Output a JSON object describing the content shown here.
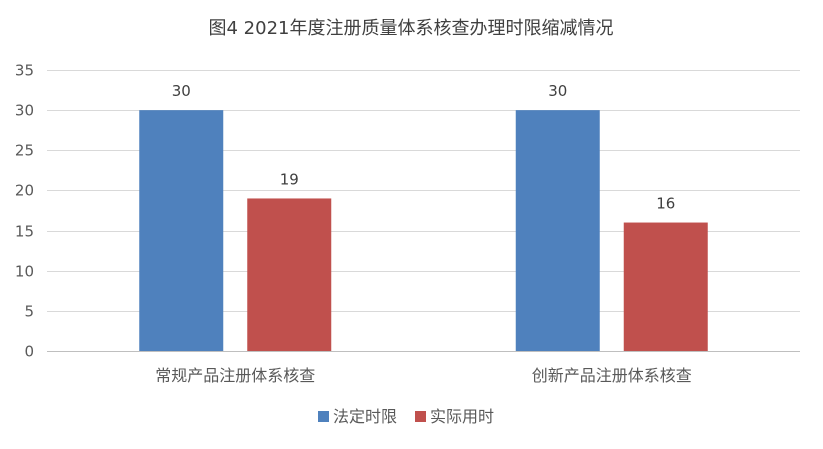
{
  "chart_data": {
    "type": "bar",
    "title": "图4 2021年度注册质量体系核查办理时限缩减情况",
    "xlabel": "",
    "ylabel": "",
    "categories": [
      "常规产品注册体系核查",
      "创新产品注册体系核查"
    ],
    "series": [
      {
        "name": "法定时限",
        "values": [
          30,
          30
        ],
        "color": "#4F81BD"
      },
      {
        "name": "实际用时",
        "values": [
          19,
          16
        ],
        "color": "#C0504D"
      }
    ],
    "ylim": [
      0,
      35
    ],
    "yticks": [
      0,
      5,
      10,
      15,
      20,
      25,
      30,
      35
    ],
    "grid": true,
    "legend": "bottom",
    "data_labels": true
  }
}
